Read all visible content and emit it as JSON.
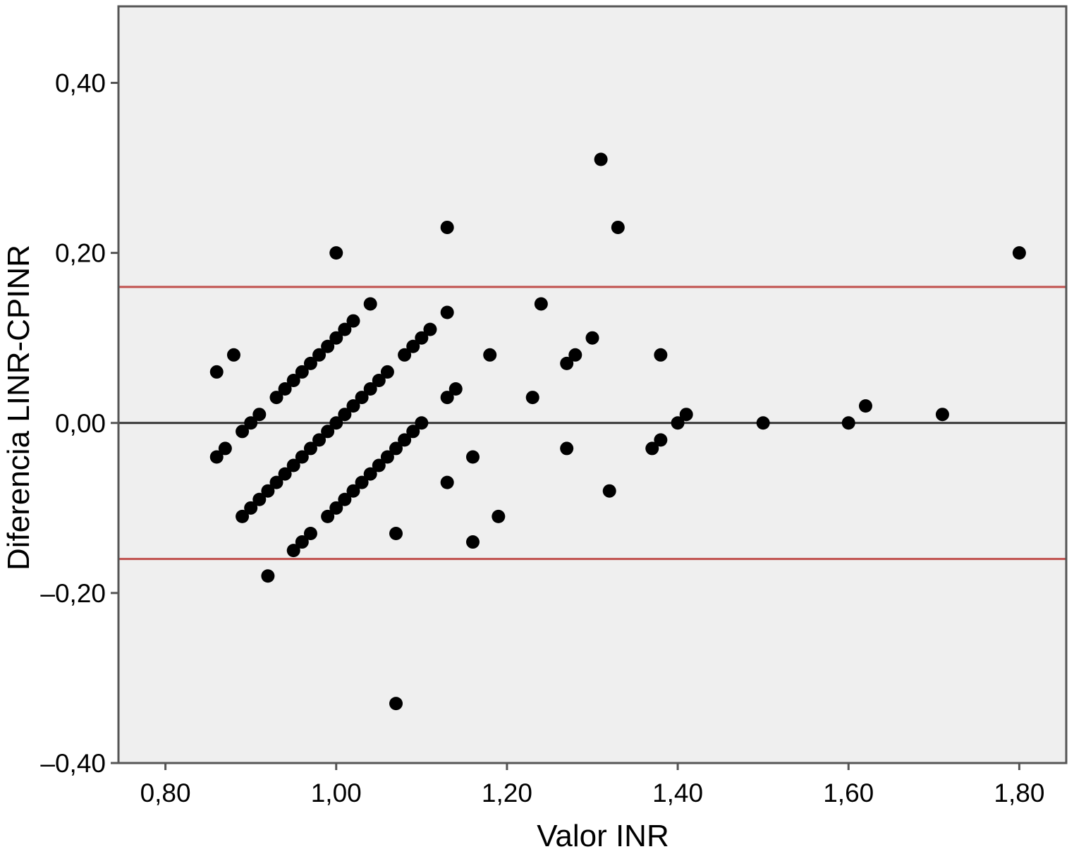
{
  "chart_data": {
    "type": "scatter",
    "title": "",
    "xlabel": "Valor INR",
    "ylabel": "Diferencia LINR-CPINR",
    "xlim": [
      0.745,
      1.855
    ],
    "ylim": [
      -0.4,
      0.49
    ],
    "x_ticks": [
      0.8,
      1.0,
      1.2,
      1.4,
      1.6,
      1.8
    ],
    "x_tick_labels": [
      "0,80",
      "1,00",
      "1,20",
      "1,40",
      "1,60",
      "1,80"
    ],
    "y_ticks": [
      -0.4,
      -0.2,
      0.0,
      0.2,
      0.4
    ],
    "y_tick_labels": [
      "–0,40",
      "–0,20",
      "0,00",
      "0,20",
      "0,40"
    ],
    "plot_background": "#efefef",
    "grid": false,
    "legend": "none",
    "point_color": "#000000",
    "reference_lines": [
      {
        "y": 0.0,
        "color": "#333333"
      },
      {
        "y": 0.16,
        "color": "#c0504d"
      },
      {
        "y": -0.16,
        "color": "#c0504d"
      }
    ],
    "points": [
      [
        0.86,
        0.06
      ],
      [
        0.88,
        0.08
      ],
      [
        0.86,
        -0.04
      ],
      [
        0.87,
        -0.03
      ],
      [
        0.89,
        -0.01
      ],
      [
        0.9,
        0.0
      ],
      [
        0.91,
        0.01
      ],
      [
        0.93,
        0.03
      ],
      [
        0.94,
        0.04
      ],
      [
        0.95,
        0.05
      ],
      [
        0.96,
        0.06
      ],
      [
        0.97,
        0.07
      ],
      [
        0.98,
        0.08
      ],
      [
        0.99,
        0.09
      ],
      [
        1.0,
        0.1
      ],
      [
        1.01,
        0.11
      ],
      [
        1.02,
        0.12
      ],
      [
        1.04,
        0.14
      ],
      [
        0.89,
        -0.11
      ],
      [
        0.9,
        -0.1
      ],
      [
        0.91,
        -0.09
      ],
      [
        0.92,
        -0.08
      ],
      [
        0.93,
        -0.07
      ],
      [
        0.94,
        -0.06
      ],
      [
        0.95,
        -0.05
      ],
      [
        0.96,
        -0.04
      ],
      [
        0.97,
        -0.03
      ],
      [
        0.98,
        -0.02
      ],
      [
        0.99,
        -0.01
      ],
      [
        1.0,
        0.0
      ],
      [
        1.01,
        0.01
      ],
      [
        1.02,
        0.02
      ],
      [
        1.03,
        0.03
      ],
      [
        1.04,
        0.04
      ],
      [
        1.05,
        0.05
      ],
      [
        1.06,
        0.06
      ],
      [
        1.08,
        0.08
      ],
      [
        1.09,
        0.09
      ],
      [
        1.1,
        0.1
      ],
      [
        1.11,
        0.11
      ],
      [
        1.13,
        0.13
      ],
      [
        0.95,
        -0.15
      ],
      [
        0.96,
        -0.14
      ],
      [
        0.97,
        -0.13
      ],
      [
        0.99,
        -0.11
      ],
      [
        1.0,
        -0.1
      ],
      [
        1.01,
        -0.09
      ],
      [
        1.02,
        -0.08
      ],
      [
        1.03,
        -0.07
      ],
      [
        1.04,
        -0.06
      ],
      [
        1.05,
        -0.05
      ],
      [
        1.06,
        -0.04
      ],
      [
        1.07,
        -0.03
      ],
      [
        1.08,
        -0.02
      ],
      [
        1.09,
        -0.01
      ],
      [
        1.1,
        0.0
      ],
      [
        0.92,
        -0.18
      ],
      [
        1.0,
        0.2
      ],
      [
        1.07,
        -0.13
      ],
      [
        1.07,
        -0.33
      ],
      [
        1.13,
        0.23
      ],
      [
        1.13,
        0.03
      ],
      [
        1.14,
        0.04
      ],
      [
        1.13,
        -0.07
      ],
      [
        1.16,
        -0.04
      ],
      [
        1.16,
        -0.14
      ],
      [
        1.18,
        0.08
      ],
      [
        1.19,
        -0.11
      ],
      [
        1.23,
        0.03
      ],
      [
        1.24,
        0.14
      ],
      [
        1.27,
        0.07
      ],
      [
        1.28,
        0.08
      ],
      [
        1.27,
        -0.03
      ],
      [
        1.3,
        0.1
      ],
      [
        1.31,
        0.31
      ],
      [
        1.32,
        -0.08
      ],
      [
        1.33,
        0.23
      ],
      [
        1.37,
        -0.03
      ],
      [
        1.38,
        -0.02
      ],
      [
        1.38,
        0.08
      ],
      [
        1.4,
        0.0
      ],
      [
        1.41,
        0.01
      ],
      [
        1.5,
        0.0
      ],
      [
        1.6,
        0.0
      ],
      [
        1.62,
        0.02
      ],
      [
        1.71,
        0.01
      ],
      [
        1.8,
        0.2
      ]
    ]
  }
}
